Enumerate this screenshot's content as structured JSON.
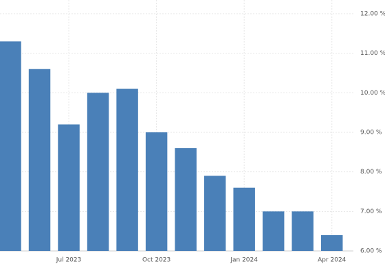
{
  "chart_data": {
    "type": "bar",
    "categories": [
      null,
      null,
      "Jul 2023",
      null,
      null,
      "Oct 2023",
      null,
      null,
      "Jan 2024",
      null,
      null,
      "Apr 2024"
    ],
    "values": [
      11.3,
      10.6,
      9.2,
      10.0,
      10.1,
      9.0,
      8.6,
      7.9,
      7.6,
      7.0,
      7.0,
      6.4
    ],
    "color": "#4a80b8",
    "ylim": [
      6,
      12
    ],
    "yticks": [
      {
        "value": 6,
        "label": "6.00 %"
      },
      {
        "value": 7,
        "label": "7.00 %"
      },
      {
        "value": 8,
        "label": "8.00 %"
      },
      {
        "value": 9,
        "label": "9.00 %"
      },
      {
        "value": 10,
        "label": "10.00 %"
      },
      {
        "value": 11,
        "label": "11.00 %"
      },
      {
        "value": 12,
        "label": "12.00 %"
      }
    ],
    "grid": true
  }
}
